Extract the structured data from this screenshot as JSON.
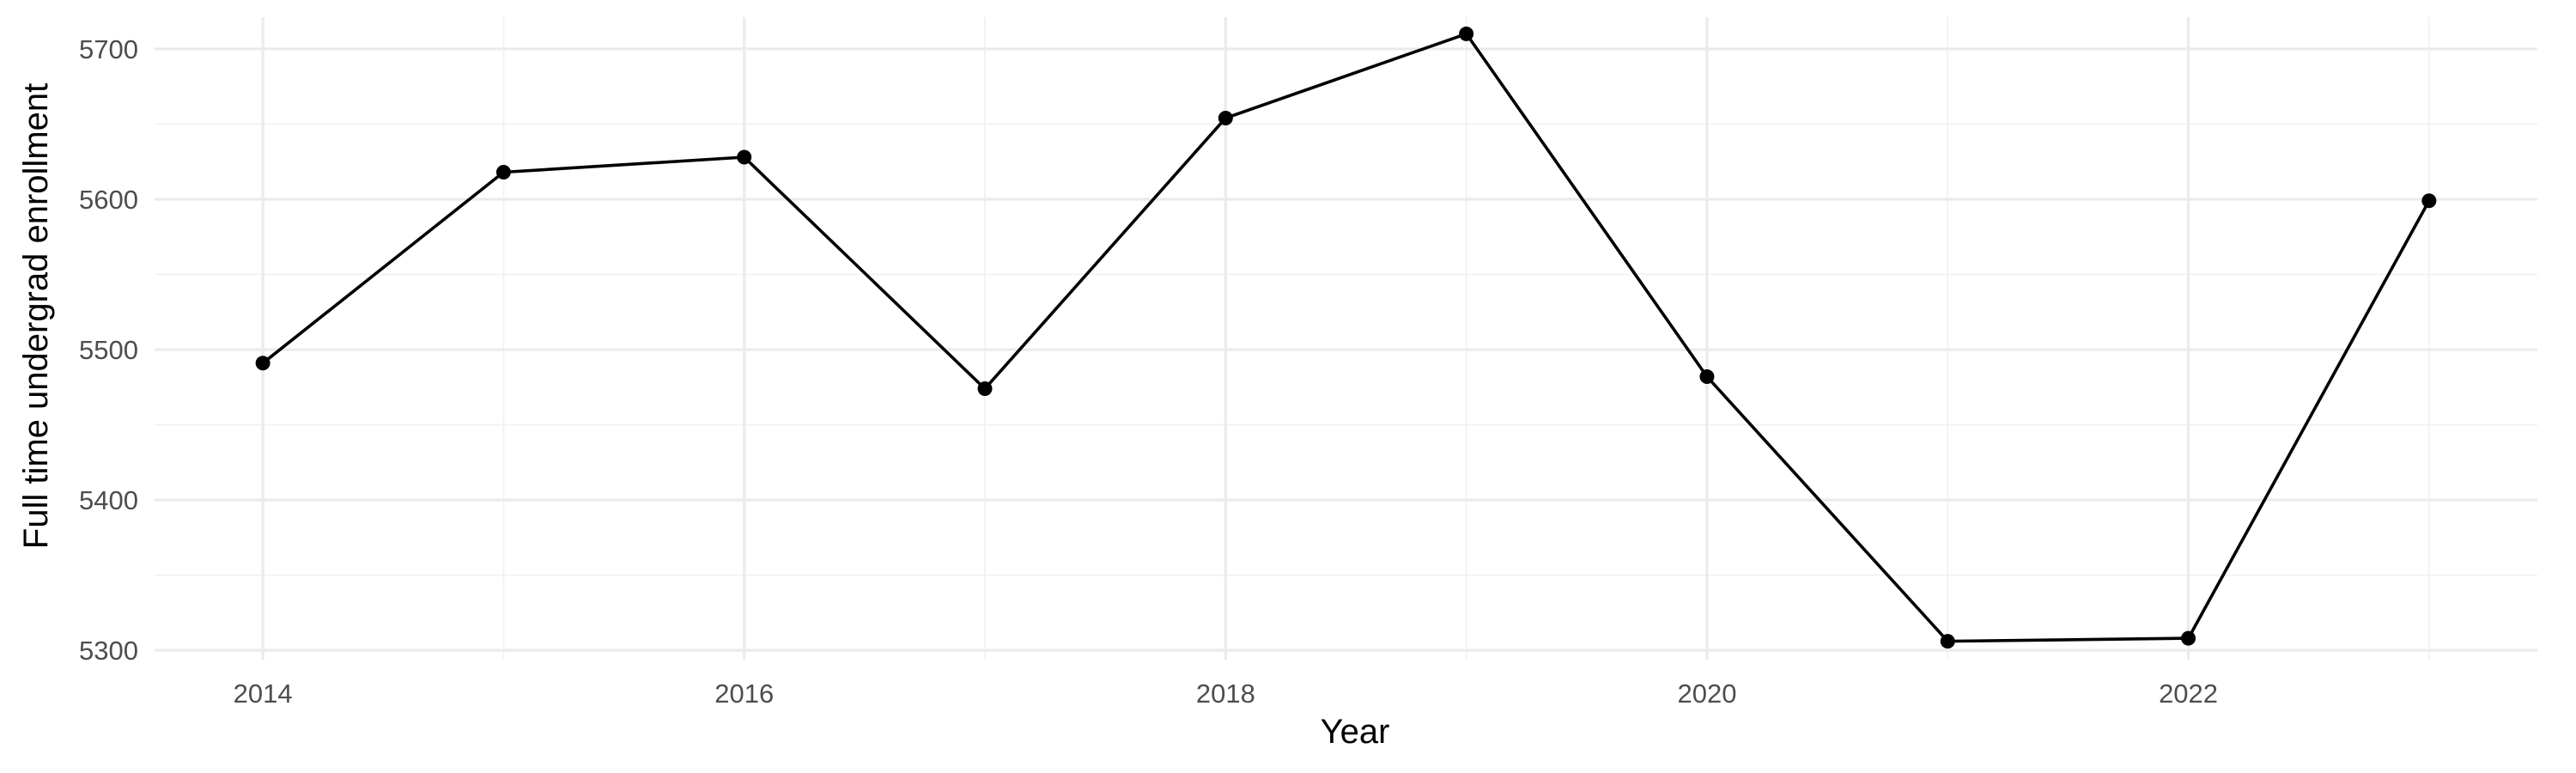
{
  "chart_data": {
    "type": "line",
    "title": "",
    "xlabel": "Year",
    "ylabel": "Full time undergrad enrollment",
    "x": [
      2014,
      2015,
      2016,
      2017,
      2018,
      2019,
      2020,
      2021,
      2022,
      2023
    ],
    "series": [
      {
        "values": [
          5491,
          5618,
          5628,
          5474,
          5654,
          5710,
          5482,
          5306,
          5308,
          5599
        ]
      }
    ],
    "xlim": [
      2013.55,
      2023.45
    ],
    "ylim": [
      5293.8,
      5721.1
    ],
    "x_ticks": [
      2014,
      2016,
      2018,
      2020,
      2022
    ],
    "x_tick_labels": [
      "2014",
      "2016",
      "2018",
      "2020",
      "2022"
    ],
    "y_ticks": [
      5300,
      5400,
      5500,
      5600,
      5700
    ],
    "y_tick_labels": [
      "5300",
      "5400",
      "5500",
      "5600",
      "5700"
    ],
    "x_minor_ticks": [
      2015,
      2017,
      2019,
      2021,
      2023
    ],
    "y_minor_ticks": [
      5350,
      5450,
      5550,
      5650
    ],
    "grid": true,
    "legend": "none",
    "line_color": "#000000",
    "point_color": "#000000",
    "background": "#ffffff"
  }
}
